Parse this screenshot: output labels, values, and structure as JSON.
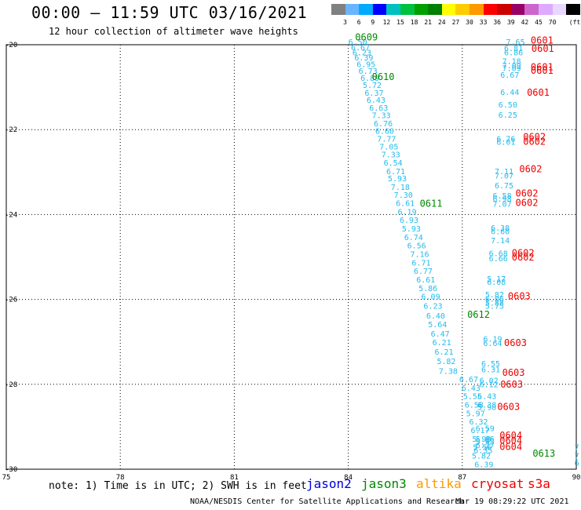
{
  "header": {
    "title": "00:00 – 11:59 UTC 03/16/2021",
    "subtitle": "12 hour collection of altimeter wave heights"
  },
  "scale": {
    "unit": "(ft)",
    "colors": [
      "#808080",
      "#6ab4ff",
      "#00aaff",
      "#0000ff",
      "#00c0c0",
      "#00c040",
      "#00a000",
      "#008000",
      "#ffff00",
      "#ffcc00",
      "#ff9900",
      "#ff0000",
      "#cc0000",
      "#990066",
      "#cc66cc",
      "#ddaaff",
      "#e8d8ff",
      "#000000"
    ],
    "labels": [
      "3",
      "6",
      "9",
      "12",
      "15",
      "18",
      "21",
      "24",
      "27",
      "30",
      "33",
      "36",
      "39",
      "42",
      "45",
      "70"
    ]
  },
  "axes": {
    "lon_min": 75,
    "lon_max": 90,
    "lat_min": -30,
    "lat_max": -20,
    "x_ticks": [
      "75",
      "78",
      "81",
      "84",
      "87",
      "90"
    ],
    "y_ticks": [
      "-20",
      "-22",
      "-24",
      "-26",
      "-28",
      "-30"
    ],
    "grid": "dotted"
  },
  "colors": {
    "cyan": "#22bbee",
    "green": "#008800",
    "red": "#ee0000",
    "orange": "#ff9900",
    "blue": "#0000dd"
  },
  "tracks": [
    {
      "name": "green",
      "color": "#008800",
      "values": [
        {
          "lon": 84.0,
          "lat": -20.0,
          "v": "6.50"
        },
        {
          "lon": 84.07,
          "lat": -20.13,
          "v": "6.67"
        },
        {
          "lon": 84.11,
          "lat": -20.25,
          "v": "6.23"
        },
        {
          "lon": 84.16,
          "lat": -20.37,
          "v": "6.39"
        },
        {
          "lon": 84.22,
          "lat": -20.53,
          "v": "6.95"
        },
        {
          "lon": 84.27,
          "lat": -20.68,
          "v": "6.73"
        },
        {
          "lon": 84.32,
          "lat": -20.85,
          "v": "6.89"
        },
        {
          "lon": 84.38,
          "lat": -21.02,
          "v": "5.72"
        },
        {
          "lon": 84.43,
          "lat": -21.2,
          "v": "6.37"
        },
        {
          "lon": 84.48,
          "lat": -21.37,
          "v": "6.43"
        },
        {
          "lon": 84.55,
          "lat": -21.55,
          "v": "6.63"
        },
        {
          "lon": 84.62,
          "lat": -21.73,
          "v": "7.33"
        },
        {
          "lon": 84.67,
          "lat": -21.92,
          "v": "6.76"
        },
        {
          "lon": 84.71,
          "lat": -22.1,
          "v": "6.60"
        },
        {
          "lon": 84.76,
          "lat": -22.28,
          "v": "7.77"
        },
        {
          "lon": 84.82,
          "lat": -22.47,
          "v": "7.05"
        },
        {
          "lon": 84.87,
          "lat": -22.65,
          "v": "7.33"
        },
        {
          "lon": 84.93,
          "lat": -22.85,
          "v": "6.54"
        },
        {
          "lon": 85.0,
          "lat": -23.05,
          "v": "6.71"
        },
        {
          "lon": 85.04,
          "lat": -23.22,
          "v": "5.93"
        },
        {
          "lon": 85.12,
          "lat": -23.42,
          "v": "7.18"
        },
        {
          "lon": 85.2,
          "lat": -23.6,
          "v": "7.30"
        },
        {
          "lon": 85.25,
          "lat": -23.8,
          "v": "6.61"
        },
        {
          "lon": 85.3,
          "lat": -24.0,
          "v": "6.19"
        },
        {
          "lon": 85.35,
          "lat": -24.2,
          "v": "6.93"
        },
        {
          "lon": 85.41,
          "lat": -24.4,
          "v": "5.93"
        },
        {
          "lon": 85.47,
          "lat": -24.6,
          "v": "6.74"
        },
        {
          "lon": 85.55,
          "lat": -24.8,
          "v": "6.56"
        },
        {
          "lon": 85.63,
          "lat": -25.0,
          "v": "7.16"
        },
        {
          "lon": 85.67,
          "lat": -25.2,
          "v": "6.71"
        },
        {
          "lon": 85.72,
          "lat": -25.4,
          "v": "6.77"
        },
        {
          "lon": 85.79,
          "lat": -25.6,
          "v": "6.61"
        },
        {
          "lon": 85.85,
          "lat": -25.8,
          "v": "5.86"
        },
        {
          "lon": 85.92,
          "lat": -26.0,
          "v": "6.09"
        },
        {
          "lon": 85.98,
          "lat": -26.22,
          "v": "6.23"
        },
        {
          "lon": 86.05,
          "lat": -26.45,
          "v": "6.40"
        },
        {
          "lon": 86.1,
          "lat": -26.65,
          "v": "5.64"
        },
        {
          "lon": 86.17,
          "lat": -26.88,
          "v": "6.47"
        },
        {
          "lon": 86.21,
          "lat": -27.08,
          "v": "6.21"
        },
        {
          "lon": 86.27,
          "lat": -27.3,
          "v": "6.21"
        },
        {
          "lon": 86.33,
          "lat": -27.52,
          "v": "5.82"
        },
        {
          "lon": 86.38,
          "lat": -27.75,
          "v": "7.38"
        }
      ],
      "labels": [
        {
          "lon": 84.18,
          "lat": -19.9,
          "t": "0609"
        },
        {
          "lon": 84.62,
          "lat": -20.83,
          "t": "0610"
        },
        {
          "lon": 85.88,
          "lat": -23.82,
          "t": "0611"
        },
        {
          "lon": 87.13,
          "lat": -26.43,
          "t": "0612"
        },
        {
          "lon": 88.85,
          "lat": -29.7,
          "t": "0613"
        }
      ]
    },
    {
      "name": "green-south",
      "color": "#008800",
      "values": [
        {
          "lon": 86.92,
          "lat": -27.95,
          "v": "6.67"
        },
        {
          "lon": 86.98,
          "lat": -28.15,
          "v": "6.43"
        },
        {
          "lon": 87.02,
          "lat": -28.35,
          "v": "5.55"
        },
        {
          "lon": 87.06,
          "lat": -28.55,
          "v": "6.58"
        },
        {
          "lon": 87.1,
          "lat": -28.75,
          "v": "5.97"
        },
        {
          "lon": 87.18,
          "lat": -28.95,
          "v": "6.32"
        },
        {
          "lon": 87.22,
          "lat": -29.15,
          "v": "6.17"
        },
        {
          "lon": 87.26,
          "lat": -29.35,
          "v": "5.98"
        },
        {
          "lon": 87.28,
          "lat": -29.55,
          "v": "5.56"
        },
        {
          "lon": 87.25,
          "lat": -29.75,
          "v": "5.82"
        },
        {
          "lon": 87.32,
          "lat": -29.95,
          "v": "6.39"
        }
      ],
      "labels": []
    },
    {
      "name": "red",
      "color": "#ee0000",
      "values": [
        {
          "lon": 88.15,
          "lat": -20.0,
          "v": "7.65"
        },
        {
          "lon": 88.1,
          "lat": -20.15,
          "v": "6.81"
        },
        {
          "lon": 88.1,
          "lat": -20.25,
          "v": "6.86"
        },
        {
          "lon": 88.05,
          "lat": -20.45,
          "v": "7.18"
        },
        {
          "lon": 88.05,
          "lat": -20.55,
          "v": "7.09"
        },
        {
          "lon": 88.05,
          "lat": -20.62,
          "v": "7.09"
        },
        {
          "lon": 88.0,
          "lat": -20.78,
          "v": "6.67"
        },
        {
          "lon": 88.0,
          "lat": -21.18,
          "v": "6.44"
        },
        {
          "lon": 87.95,
          "lat": -21.48,
          "v": "6.50"
        },
        {
          "lon": 87.95,
          "lat": -21.72,
          "v": "6.25"
        },
        {
          "lon": 87.9,
          "lat": -22.28,
          "v": "6.76"
        },
        {
          "lon": 87.9,
          "lat": -22.36,
          "v": "6.01"
        },
        {
          "lon": 87.85,
          "lat": -23.05,
          "v": "7.11"
        },
        {
          "lon": 87.85,
          "lat": -23.15,
          "v": "7.07"
        },
        {
          "lon": 87.85,
          "lat": -23.38,
          "v": "6.75"
        },
        {
          "lon": 87.8,
          "lat": -23.62,
          "v": "6.58"
        },
        {
          "lon": 87.8,
          "lat": -23.7,
          "v": "6.98"
        },
        {
          "lon": 87.8,
          "lat": -23.82,
          "v": "7.07"
        },
        {
          "lon": 87.75,
          "lat": -24.38,
          "v": "6.38"
        },
        {
          "lon": 87.75,
          "lat": -24.46,
          "v": "6.60"
        },
        {
          "lon": 87.75,
          "lat": -24.68,
          "v": "7.14"
        },
        {
          "lon": 87.7,
          "lat": -24.98,
          "v": "6.68"
        },
        {
          "lon": 87.7,
          "lat": -25.1,
          "v": "6.66"
        },
        {
          "lon": 87.65,
          "lat": -25.58,
          "v": "5.17"
        },
        {
          "lon": 87.65,
          "lat": -25.66,
          "v": "6.08"
        },
        {
          "lon": 87.6,
          "lat": -25.95,
          "v": "5.82"
        },
        {
          "lon": 87.6,
          "lat": -26.05,
          "v": "6.06"
        },
        {
          "lon": 87.6,
          "lat": -26.15,
          "v": "5.88"
        },
        {
          "lon": 87.6,
          "lat": -26.22,
          "v": "5.75"
        },
        {
          "lon": 87.55,
          "lat": -27.0,
          "v": "6.19"
        },
        {
          "lon": 87.55,
          "lat": -27.1,
          "v": "6.64"
        },
        {
          "lon": 87.5,
          "lat": -27.58,
          "v": "6.55"
        },
        {
          "lon": 87.5,
          "lat": -27.72,
          "v": "6.31"
        },
        {
          "lon": 87.45,
          "lat": -27.98,
          "v": "6.02"
        },
        {
          "lon": 87.45,
          "lat": -28.07,
          "v": "6.12"
        },
        {
          "lon": 87.4,
          "lat": -28.35,
          "v": "6.43"
        },
        {
          "lon": 87.4,
          "lat": -28.55,
          "v": "6.38"
        },
        {
          "lon": 87.4,
          "lat": -28.6,
          "v": "5.98"
        },
        {
          "lon": 87.35,
          "lat": -29.1,
          "v": "6.59"
        },
        {
          "lon": 87.35,
          "lat": -29.35,
          "v": "5.86"
        },
        {
          "lon": 87.35,
          "lat": -29.42,
          "v": "5.95"
        },
        {
          "lon": 87.35,
          "lat": -29.5,
          "v": "6.27"
        },
        {
          "lon": 87.3,
          "lat": -29.62,
          "v": "6.35"
        },
        {
          "lon": 89.95,
          "lat": -29.55,
          "v": "7"
        },
        {
          "lon": 89.95,
          "lat": -29.75,
          "v": "7"
        },
        {
          "lon": 89.95,
          "lat": -29.92,
          "v": "6"
        }
      ],
      "labels": [
        {
          "lon": 88.8,
          "lat": -19.97,
          "t": "0601"
        },
        {
          "lon": 88.82,
          "lat": -20.17,
          "t": "0601"
        },
        {
          "lon": 88.8,
          "lat": -20.6,
          "t": "0601"
        },
        {
          "lon": 88.8,
          "lat": -20.68,
          "t": "0601"
        },
        {
          "lon": 88.7,
          "lat": -21.2,
          "t": "0601"
        },
        {
          "lon": 88.6,
          "lat": -22.25,
          "t": "0602"
        },
        {
          "lon": 88.6,
          "lat": -22.36,
          "t": "0602"
        },
        {
          "lon": 88.5,
          "lat": -23.0,
          "t": "0602"
        },
        {
          "lon": 88.4,
          "lat": -23.58,
          "t": "0602"
        },
        {
          "lon": 88.4,
          "lat": -23.8,
          "t": "0602"
        },
        {
          "lon": 88.3,
          "lat": -24.98,
          "t": "0602"
        },
        {
          "lon": 88.3,
          "lat": -25.08,
          "t": "0602"
        },
        {
          "lon": 88.2,
          "lat": -26.0,
          "t": "0603"
        },
        {
          "lon": 88.1,
          "lat": -27.1,
          "t": "0603"
        },
        {
          "lon": 88.05,
          "lat": -27.8,
          "t": "0603"
        },
        {
          "lon": 88.0,
          "lat": -28.08,
          "t": "0603"
        },
        {
          "lon": 87.92,
          "lat": -28.6,
          "t": "0603"
        },
        {
          "lon": 87.98,
          "lat": -29.28,
          "t": "0604"
        },
        {
          "lon": 87.98,
          "lat": -29.4,
          "t": "0604"
        },
        {
          "lon": 87.98,
          "lat": -29.55,
          "t": "0604"
        }
      ]
    }
  ],
  "footer": {
    "note": "note: 1) Time is in UTC; 2) SWH is in feet",
    "sat_jason2": "jason2",
    "sat_jason3": "jason3",
    "sat_altika": "altika",
    "sat_cryosat": "cryosat",
    "sat_s3a": "s3a",
    "credit": "NOAA/NESDIS Center for Satellite Applications and Research",
    "stamp": "Mar 19 08:29:22 UTC 2021"
  }
}
